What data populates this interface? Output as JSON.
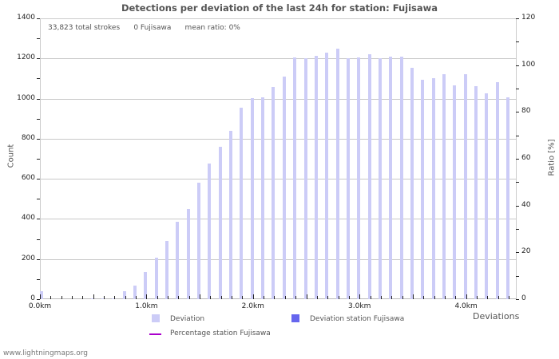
{
  "chart_data": {
    "type": "bar",
    "title": "Detections per deviation of the last 24h for station: Fujisawa",
    "xlabel": "Deviations",
    "ylabel": "Count",
    "ylabel_right": "Ratio [%]",
    "ylim": [
      0,
      1400
    ],
    "ylim_right": [
      0,
      120
    ],
    "yticks": [
      0,
      200,
      400,
      600,
      800,
      1000,
      1200,
      1400
    ],
    "yticks_right": [
      0,
      20,
      40,
      60,
      80,
      100,
      120
    ],
    "xticks": [
      "0.0km",
      "1.0km",
      "2.0km",
      "3.0km",
      "4.0km"
    ],
    "x_km": [
      0.0,
      0.1,
      0.2,
      0.3,
      0.4,
      0.5,
      0.6,
      0.7,
      0.8,
      0.9,
      1.0,
      1.1,
      1.2,
      1.3,
      1.4,
      1.5,
      1.6,
      1.7,
      1.8,
      1.9,
      2.0,
      2.1,
      2.2,
      2.3,
      2.4,
      2.5,
      2.6,
      2.7,
      2.8,
      2.9,
      3.0,
      3.1,
      3.2,
      3.3,
      3.4,
      3.5,
      3.6,
      3.7,
      3.8,
      3.9,
      4.0,
      4.1,
      4.2,
      4.3,
      4.4
    ],
    "series": [
      {
        "name": "Deviation",
        "color": "#ccccf7",
        "values": [
          40,
          0,
          0,
          0,
          0,
          2,
          3,
          5,
          40,
          68,
          135,
          207,
          290,
          386,
          450,
          580,
          676,
          760,
          840,
          955,
          1002,
          1006,
          1058,
          1110,
          1205,
          1200,
          1212,
          1228,
          1248,
          1200,
          1205,
          1220,
          1200,
          1210,
          1210,
          1155,
          1095,
          1100,
          1122,
          1065,
          1122,
          1062,
          1028,
          1082,
          1008
        ]
      },
      {
        "name": "Deviation station Fujisawa",
        "color": "#6666ee",
        "values": [
          0,
          0,
          0,
          0,
          0,
          0,
          0,
          0,
          0,
          0,
          0,
          0,
          0,
          0,
          0,
          0,
          0,
          0,
          0,
          0,
          0,
          0,
          0,
          0,
          0,
          0,
          0,
          0,
          0,
          0,
          0,
          0,
          0,
          0,
          0,
          0,
          0,
          0,
          0,
          0,
          0,
          0,
          0,
          0,
          0
        ]
      },
      {
        "name": "Percentage station Fujisawa",
        "color": "#aa00cc",
        "type": "line",
        "values": []
      }
    ],
    "annotations": [
      "33,823 total strokes",
      "0 Fujisawa",
      "mean ratio: 0%"
    ],
    "grid": true,
    "legend_position": "bottom"
  },
  "stats": {
    "total": "33,823 total strokes",
    "station": "0 Fujisawa",
    "ratio": "mean ratio: 0%"
  },
  "legend": {
    "deviation": "Deviation",
    "deviation_station": "Deviation station Fujisawa",
    "percentage_station": "Percentage station Fujisawa"
  },
  "footer": "www.lightningmaps.org"
}
